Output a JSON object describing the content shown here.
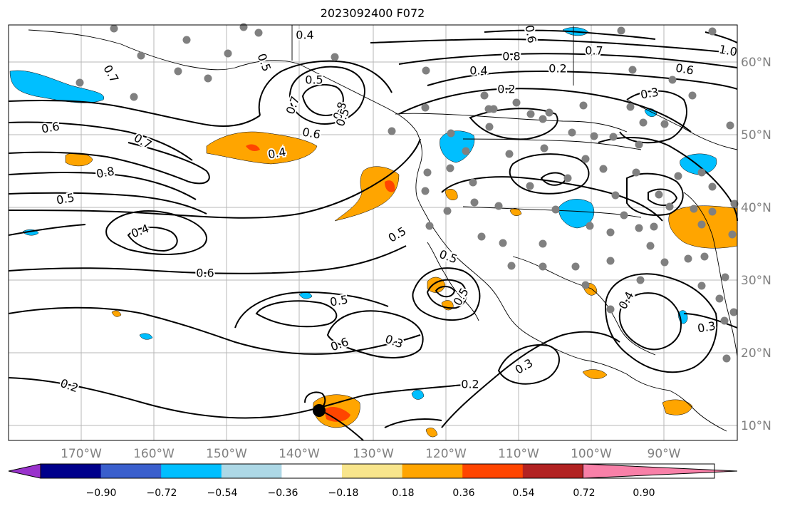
{
  "title": "2023092400 F072",
  "lon_ticks": [
    "170°W",
    "160°W",
    "150°W",
    "140°W",
    "130°W",
    "120°W",
    "110°W",
    "100°W",
    "90°W"
  ],
  "lat_ticks": [
    "60°N",
    "50°N",
    "40°N",
    "30°N",
    "20°N",
    "10°N"
  ],
  "colorbar": {
    "ticks": [
      "−0.90",
      "−0.72",
      "−0.54",
      "−0.36",
      "−0.18",
      "0.18",
      "0.36",
      "0.54",
      "0.72",
      "0.90"
    ],
    "colors": [
      "#9932CC",
      "#00008B",
      "#3A5FCD",
      "#00BFFF",
      "#ADD8E6",
      "#FFFFFF",
      "#F8E58C",
      "#FFA500",
      "#FF4500",
      "#B22222",
      "#F880A8"
    ]
  },
  "contour_labels": [
    "0.4",
    "0.5",
    "0.7",
    "0.8",
    "0.6",
    "0.5",
    "0.4",
    "0.7",
    "1.0",
    "0.6",
    "0.2",
    "0.3",
    "0.6",
    "0.7",
    "0.8",
    "0.5",
    "0.4",
    "0.6",
    "0.5",
    "0.5",
    "0.5",
    "0.5",
    "0.6",
    "0.3",
    "0.2",
    "0.2",
    "0.3",
    "0.4",
    "0.3",
    "0.2",
    "0.4",
    "0.5",
    "0.6",
    "0.8",
    "0.7"
  ]
}
